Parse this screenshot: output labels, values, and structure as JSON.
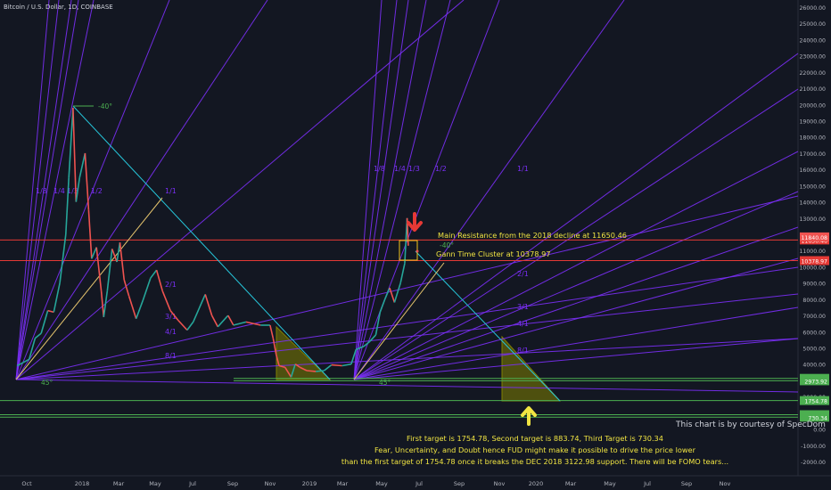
{
  "symbol": "Bitcoin / U.S. Dollar, 1D, COINBASE",
  "chart_data": {
    "type": "line",
    "title": "Bitcoin / U.S. Dollar, 1D, COINBASE",
    "price_axis": {
      "ticks": [
        26000,
        25000,
        24000,
        23000,
        22000,
        21000,
        20000,
        19000,
        18000,
        17000,
        16000,
        15000,
        14000,
        13000,
        12000,
        11000,
        10000,
        9000,
        8000,
        7000,
        6000,
        5000,
        4000,
        3000,
        2000,
        1000,
        0,
        -1000,
        -2000
      ],
      "labels": [
        "26000.00",
        "25000.00",
        "24000.00",
        "23000.00",
        "22000.00",
        "21000.00",
        "20000.00",
        "19000.00",
        "18000.00",
        "17000.00",
        "16000.00",
        "15000.00",
        "14000.00",
        "13000.00",
        "12000.00",
        "11000.00",
        "10000.00",
        "9000.00",
        "8000.00",
        "7000.00",
        "6000.00",
        "5000.00",
        "4000.00",
        "3000.00",
        "2000.00",
        "1000.00",
        "0.00",
        "-1000.00",
        "-2000.00"
      ],
      "range": [
        -2500,
        26500
      ]
    },
    "time_axis": {
      "labels": [
        "Oct",
        "2018",
        "Mar",
        "May",
        "Jul",
        "Sep",
        "Nov",
        "2019",
        "Mar",
        "May",
        "Jul",
        "Sep",
        "Nov",
        "2020",
        "Mar",
        "May",
        "Jul",
        "Sep",
        "Nov"
      ]
    },
    "price_path": [
      [
        "2017-09-15",
        3900
      ],
      [
        "2017-09-25",
        4100
      ],
      [
        "2017-10-05",
        4300
      ],
      [
        "2017-10-15",
        5600
      ],
      [
        "2017-10-25",
        5900
      ],
      [
        "2017-11-05",
        7300
      ],
      [
        "2017-11-15",
        7200
      ],
      [
        "2017-11-25",
        9000
      ],
      [
        "2017-12-05",
        12000
      ],
      [
        "2017-12-10",
        15500
      ],
      [
        "2017-12-17",
        19800
      ],
      [
        "2017-12-22",
        14000
      ],
      [
        "2017-12-28",
        15500
      ],
      [
        "2018-01-06",
        17000
      ],
      [
        "2018-01-12",
        13500
      ],
      [
        "2018-01-17",
        10500
      ],
      [
        "2018-01-25",
        11200
      ],
      [
        "2018-02-02",
        8500
      ],
      [
        "2018-02-06",
        6900
      ],
      [
        "2018-02-12",
        8500
      ],
      [
        "2018-02-20",
        11100
      ],
      [
        "2018-02-28",
        10300
      ],
      [
        "2018-03-05",
        11500
      ],
      [
        "2018-03-12",
        9200
      ],
      [
        "2018-03-20",
        8200
      ],
      [
        "2018-04-01",
        6800
      ],
      [
        "2018-04-12",
        7900
      ],
      [
        "2018-04-25",
        9300
      ],
      [
        "2018-05-05",
        9800
      ],
      [
        "2018-05-15",
        8500
      ],
      [
        "2018-05-28",
        7300
      ],
      [
        "2018-06-10",
        6700
      ],
      [
        "2018-06-25",
        6100
      ],
      [
        "2018-07-05",
        6600
      ],
      [
        "2018-07-25",
        8300
      ],
      [
        "2018-08-05",
        7000
      ],
      [
        "2018-08-15",
        6300
      ],
      [
        "2018-09-01",
        7000
      ],
      [
        "2018-09-10",
        6400
      ],
      [
        "2018-10-01",
        6600
      ],
      [
        "2018-10-25",
        6400
      ],
      [
        "2018-11-10",
        6400
      ],
      [
        "2018-11-15",
        5600
      ],
      [
        "2018-11-20",
        4600
      ],
      [
        "2018-11-25",
        3900
      ],
      [
        "2018-12-05",
        3800
      ],
      [
        "2018-12-15",
        3200
      ],
      [
        "2018-12-22",
        4000
      ],
      [
        "2018-12-30",
        3800
      ],
      [
        "2019-01-10",
        3600
      ],
      [
        "2019-01-25",
        3550
      ],
      [
        "2019-02-08",
        3600
      ],
      [
        "2019-02-20",
        3950
      ],
      [
        "2019-03-10",
        3900
      ],
      [
        "2019-03-25",
        4000
      ],
      [
        "2019-04-02",
        4900
      ],
      [
        "2019-04-15",
        5100
      ],
      [
        "2019-04-25",
        5400
      ],
      [
        "2019-05-05",
        5800
      ],
      [
        "2019-05-12",
        7200
      ],
      [
        "2019-05-20",
        8000
      ],
      [
        "2019-05-28",
        8700
      ],
      [
        "2019-06-05",
        7800
      ],
      [
        "2019-06-15",
        9000
      ],
      [
        "2019-06-22",
        10200
      ],
      [
        "2019-06-26",
        13000
      ],
      [
        "2019-06-28",
        11300
      ]
    ],
    "horizontal_levels": [
      {
        "label": "11650.46",
        "value": 11650.46,
        "color": "#e53935"
      },
      {
        "label": "10378.97",
        "value": 10378.97,
        "color": "#e53935"
      },
      {
        "label": "3122.98",
        "value": 3122.98,
        "color": "#4caf50"
      },
      {
        "label": "2973.92",
        "value": 2973.92,
        "color": "#4caf50"
      },
      {
        "label": "1754.78",
        "value": 1754.78,
        "color": "#4caf50"
      },
      {
        "label": "883.74",
        "value": 883.74,
        "color": "#4caf50"
      },
      {
        "label": "730.34",
        "value": 730.34,
        "color": "#4caf50"
      }
    ],
    "current_price": {
      "label": "11840.08",
      "value": 11840.08,
      "color": "#ef5350"
    },
    "fan_labels": [
      "1/8",
      "1/4",
      "1/3",
      "1/2",
      "1/1",
      "2/1",
      "3/1",
      "4/1",
      "8/1"
    ],
    "annotations": [
      "-40°",
      "45°",
      "-40°",
      "45°"
    ]
  },
  "annotations": {
    "main_resistance": "Main Resistance from the 2018 decline at 11650.46",
    "gann_cluster": "Gann Time Cluster at 10378.97"
  },
  "credit": "This chart is by courtesy of SpecDom",
  "bottom_text": [
    "First target is 1754.78, Second target is 883.74, Third Target is 730.34",
    "Fear, Uncertainty, and Doubt hence FUD might make it possible to drive the price lower",
    "than the first target of 1754.78 once it breaks the DEC 2018 3122.98 support. There will be FOMO tears..."
  ],
  "colors": {
    "background": "#131722",
    "fan": "#7b2ff7",
    "green": "#4caf50",
    "red": "#e53935",
    "cyan": "#26c6da",
    "yellow": "#f0e442",
    "olive": "#808000"
  }
}
